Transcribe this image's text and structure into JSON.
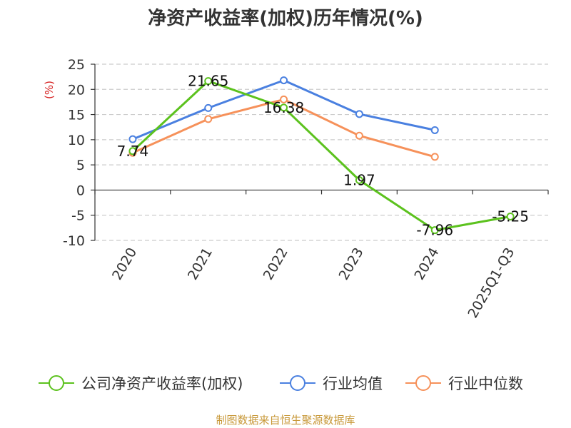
{
  "source_note": "制图数据来自恒生聚源数据库",
  "colors": {
    "company": "#5cc21e",
    "industry_avg": "#4a80e0",
    "industry_median": "#f6915a",
    "unit_label": "#d62020",
    "source": "#c8993a",
    "axis": "#333333",
    "grid": "#cccccc"
  },
  "chart_data": {
    "type": "line",
    "title": "净资产收益率(加权)历年情况(%)",
    "ylabel": "(%)",
    "xlabel": "",
    "categories": [
      "2020",
      "2021",
      "2022",
      "2023",
      "2024",
      "2025Q1-Q3"
    ],
    "ylim": [
      -10,
      25
    ],
    "yticks": [
      25,
      20,
      15,
      10,
      5,
      0,
      -5,
      -10
    ],
    "grid": true,
    "legend_position": "bottom",
    "series": [
      {
        "name": "公司净资产收益率(加权)",
        "values": [
          7.74,
          21.65,
          16.38,
          1.97,
          -7.96,
          -5.25
        ],
        "labels": [
          "7.74",
          "21.65",
          "16.38",
          "1.97",
          "-7.96",
          "-5.25"
        ]
      },
      {
        "name": "行业均值",
        "values": [
          10.1,
          16.3,
          21.8,
          15.1,
          11.9,
          null
        ]
      },
      {
        "name": "行业中位数",
        "values": [
          7.4,
          14.1,
          18.0,
          10.8,
          6.6,
          null
        ]
      }
    ]
  }
}
